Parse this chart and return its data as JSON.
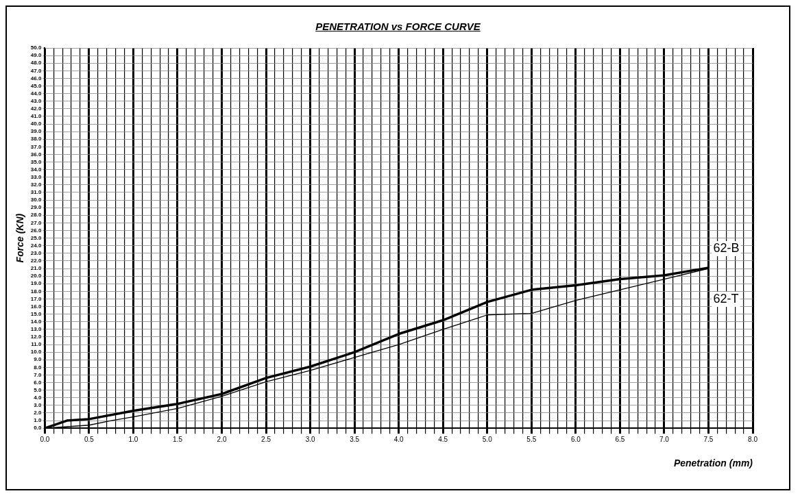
{
  "chart_data": {
    "type": "line",
    "title": "PENETRATION vs FORCE CURVE",
    "xlabel": "Penetration (mm)",
    "ylabel": "Force (KN)",
    "series": [
      {
        "name": "62-B",
        "color": "#000000",
        "x": [
          0,
          0.25,
          0.5,
          1.0,
          1.5,
          2.0,
          2.5,
          3.0,
          3.5,
          4.0,
          4.5,
          5.0,
          5.5,
          6.0,
          6.5,
          7.0,
          7.5
        ],
        "values": [
          0,
          1.0,
          1.2,
          2.3,
          3.2,
          4.5,
          6.6,
          8.1,
          10.0,
          12.4,
          14.2,
          16.6,
          18.2,
          18.8,
          19.6,
          20.1,
          21.1
        ]
      },
      {
        "name": "62-T",
        "color": "#000000",
        "x": [
          0,
          0.25,
          0.5,
          0.75,
          1.0,
          1.5,
          2.0,
          2.5,
          3.0,
          3.5,
          4.0,
          4.5,
          4.9,
          5.0,
          5.5,
          6.0,
          6.5,
          7.0,
          7.5
        ],
        "values": [
          0,
          0.2,
          0.4,
          1.0,
          1.5,
          2.6,
          4.2,
          6.1,
          7.6,
          9.3,
          11.0,
          13.0,
          14.5,
          14.9,
          15.1,
          16.8,
          18.2,
          19.6,
          21.0
        ]
      }
    ],
    "xlim": [
      0,
      8
    ],
    "ylim": [
      0,
      50
    ],
    "xticks": [
      {
        "value": 0,
        "label": "0.0"
      },
      {
        "value": 0.1,
        "label": null
      },
      {
        "value": 0.2,
        "label": null
      },
      {
        "value": 0.3,
        "label": null
      },
      {
        "value": 0.4,
        "label": null
      },
      {
        "value": 0.5,
        "label": "0.5"
      },
      {
        "value": 0.6,
        "label": null
      },
      {
        "value": 0.7,
        "label": null
      },
      {
        "value": 0.8,
        "label": null
      },
      {
        "value": 0.9,
        "label": null
      },
      {
        "value": 1,
        "label": "1.0"
      },
      {
        "value": 1.1,
        "label": null
      },
      {
        "value": 1.2,
        "label": null
      },
      {
        "value": 1.3,
        "label": null
      },
      {
        "value": 1.4,
        "label": null
      },
      {
        "value": 1.5,
        "label": "1.5"
      },
      {
        "value": 1.6,
        "label": null
      },
      {
        "value": 1.7,
        "label": null
      },
      {
        "value": 1.8,
        "label": null
      },
      {
        "value": 1.9,
        "label": null
      },
      {
        "value": 2,
        "label": "2.0"
      },
      {
        "value": 2.1,
        "label": null
      },
      {
        "value": 2.2,
        "label": null
      },
      {
        "value": 2.3,
        "label": null
      },
      {
        "value": 2.4,
        "label": null
      },
      {
        "value": 2.5,
        "label": "2.5"
      },
      {
        "value": 2.6,
        "label": null
      },
      {
        "value": 2.7,
        "label": null
      },
      {
        "value": 2.8,
        "label": null
      },
      {
        "value": 2.9,
        "label": null
      },
      {
        "value": 3,
        "label": "3.0"
      },
      {
        "value": 3.1,
        "label": null
      },
      {
        "value": 3.2,
        "label": null
      },
      {
        "value": 3.3,
        "label": null
      },
      {
        "value": 3.4,
        "label": null
      },
      {
        "value": 3.5,
        "label": "3.5"
      },
      {
        "value": 3.6,
        "label": null
      },
      {
        "value": 3.7,
        "label": null
      },
      {
        "value": 3.8,
        "label": null
      },
      {
        "value": 3.9,
        "label": null
      },
      {
        "value": 4,
        "label": "4.0"
      },
      {
        "value": 4.1,
        "label": null
      },
      {
        "value": 4.2,
        "label": null
      },
      {
        "value": 4.3,
        "label": null
      },
      {
        "value": 4.4,
        "label": null
      },
      {
        "value": 4.5,
        "label": "4.5"
      },
      {
        "value": 4.6,
        "label": null
      },
      {
        "value": 4.7,
        "label": null
      },
      {
        "value": 4.8,
        "label": null
      },
      {
        "value": 4.9,
        "label": null
      },
      {
        "value": 5,
        "label": "5.0"
      },
      {
        "value": 5.1,
        "label": null
      },
      {
        "value": 5.2,
        "label": null
      },
      {
        "value": 5.3,
        "label": null
      },
      {
        "value": 5.4,
        "label": null
      },
      {
        "value": 5.5,
        "label": "5.5"
      },
      {
        "value": 5.6,
        "label": null
      },
      {
        "value": 5.7,
        "label": null
      },
      {
        "value": 5.8,
        "label": null
      },
      {
        "value": 5.9,
        "label": null
      },
      {
        "value": 6,
        "label": "6.0"
      },
      {
        "value": 6.1,
        "label": null
      },
      {
        "value": 6.2,
        "label": null
      },
      {
        "value": 6.3,
        "label": null
      },
      {
        "value": 6.4,
        "label": null
      },
      {
        "value": 6.5,
        "label": "6.5"
      },
      {
        "value": 6.6,
        "label": null
      },
      {
        "value": 6.7,
        "label": null
      },
      {
        "value": 6.8,
        "label": null
      },
      {
        "value": 6.9,
        "label": null
      },
      {
        "value": 7,
        "label": "7.0"
      },
      {
        "value": 7.1,
        "label": null
      },
      {
        "value": 7.2,
        "label": null
      },
      {
        "value": 7.3,
        "label": null
      },
      {
        "value": 7.4,
        "label": null
      },
      {
        "value": 7.5,
        "label": "7.5"
      },
      {
        "value": 7.6,
        "label": null
      },
      {
        "value": 7.7,
        "label": null
      },
      {
        "value": 7.8,
        "label": null
      },
      {
        "value": 7.9,
        "label": null
      },
      {
        "value": 8,
        "label": "8.0"
      }
    ],
    "yticks": [
      {
        "value": 0,
        "label": "0.0"
      },
      {
        "value": 1,
        "label": "1.0"
      },
      {
        "value": 2,
        "label": "2.0"
      },
      {
        "value": 3,
        "label": "3.0"
      },
      {
        "value": 4,
        "label": "4.0"
      },
      {
        "value": 5,
        "label": "5.0"
      },
      {
        "value": 6,
        "label": "6.0"
      },
      {
        "value": 7,
        "label": "7.0"
      },
      {
        "value": 8,
        "label": "8.0"
      },
      {
        "value": 9,
        "label": "9.0"
      },
      {
        "value": 10,
        "label": "10.0"
      },
      {
        "value": 11,
        "label": "11.0"
      },
      {
        "value": 12,
        "label": "12.0"
      },
      {
        "value": 13,
        "label": "13.0"
      },
      {
        "value": 14,
        "label": "14.0"
      },
      {
        "value": 15,
        "label": "15.0"
      },
      {
        "value": 16,
        "label": "16.0"
      },
      {
        "value": 17,
        "label": "17.0"
      },
      {
        "value": 18,
        "label": "18.0"
      },
      {
        "value": 19,
        "label": "19.0"
      },
      {
        "value": 20,
        "label": "20.0"
      },
      {
        "value": 21,
        "label": "21.0"
      },
      {
        "value": 22,
        "label": "22.0"
      },
      {
        "value": 23,
        "label": "23.0"
      },
      {
        "value": 24,
        "label": "24.0"
      },
      {
        "value": 25,
        "label": "25.0"
      },
      {
        "value": 26,
        "label": "26.0"
      },
      {
        "value": 27,
        "label": "27.0"
      },
      {
        "value": 28,
        "label": "28.0"
      },
      {
        "value": 29,
        "label": "29.0"
      },
      {
        "value": 30,
        "label": "30.0"
      },
      {
        "value": 31,
        "label": "31.0"
      },
      {
        "value": 32,
        "label": "32.0"
      },
      {
        "value": 33,
        "label": "33.0"
      },
      {
        "value": 34,
        "label": "34.0"
      },
      {
        "value": 35,
        "label": "35.0"
      },
      {
        "value": 36,
        "label": "36.0"
      },
      {
        "value": 37,
        "label": "37.0"
      },
      {
        "value": 38,
        "label": "38.0"
      },
      {
        "value": 39,
        "label": "39.0"
      },
      {
        "value": 40,
        "label": "40.0"
      },
      {
        "value": 41,
        "label": "41.0"
      },
      {
        "value": 42,
        "label": "42.0"
      },
      {
        "value": 43,
        "label": "43.0"
      },
      {
        "value": 44,
        "label": "44.0"
      },
      {
        "value": 45,
        "label": "45.0"
      },
      {
        "value": 46,
        "label": "46.0"
      },
      {
        "value": 47,
        "label": "47.0"
      },
      {
        "value": 48,
        "label": "48.0"
      },
      {
        "value": 49,
        "label": "49.0"
      },
      {
        "value": 50,
        "label": "50.0"
      }
    ],
    "grid": true,
    "legend": false,
    "marker": "none",
    "line_style": "solid"
  }
}
